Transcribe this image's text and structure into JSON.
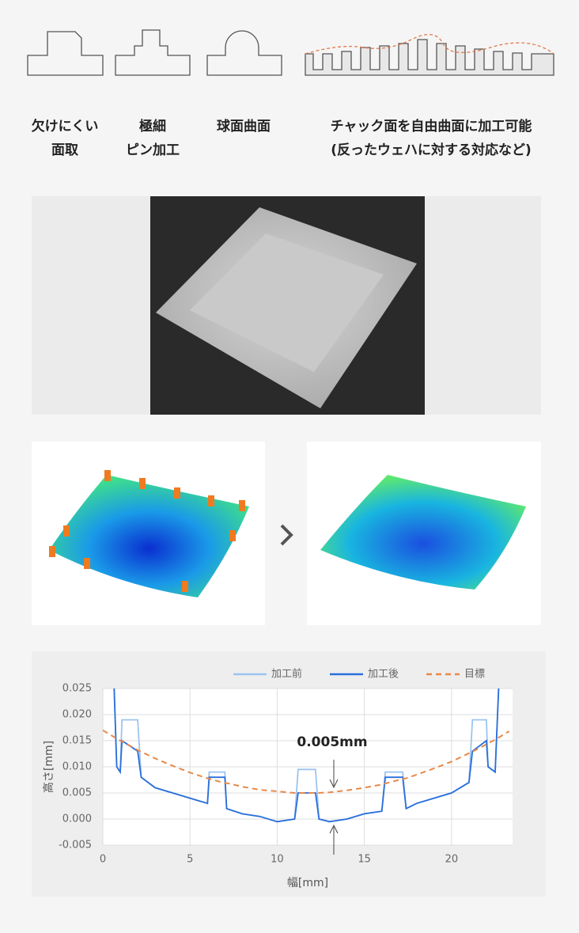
{
  "features": [
    {
      "lines": [
        "欠けにくい",
        "面取"
      ]
    },
    {
      "lines": [
        "極細",
        "ピン加工"
      ]
    },
    {
      "lines": [
        "球面曲面"
      ]
    },
    {
      "lines": [
        "チャック面を自由曲面に加工可能",
        "(反ったウェハに対する対応など)"
      ]
    }
  ],
  "chart_data": {
    "type": "line",
    "x": [
      0,
      0.65,
      0.8,
      1.0,
      1.1,
      2.0,
      2.2,
      3,
      4,
      5,
      6,
      6.1,
      7,
      7.1,
      8,
      9,
      10,
      11,
      11.2,
      12.2,
      12.4,
      13,
      14,
      15,
      16,
      16.2,
      17.2,
      17.4,
      18,
      19,
      20,
      21,
      21.2,
      22,
      22.1,
      22.5,
      22.7,
      23.3
    ],
    "series": [
      {
        "name": "加工前",
        "color": "#9cc3f0",
        "line_style": "solid",
        "values": [
          null,
          0.025,
          0.01,
          0.009,
          0.019,
          0.019,
          0.008,
          0.006,
          0.005,
          0.004,
          0.003,
          0.009,
          0.009,
          0.002,
          0.001,
          0.0005,
          -0.0005,
          0,
          0.0095,
          0.0095,
          0,
          -0.0005,
          0,
          0.001,
          0.0015,
          0.009,
          0.009,
          0.002,
          0.003,
          0.004,
          0.005,
          0.007,
          0.019,
          0.019,
          0.01,
          0.009,
          0.025,
          null
        ]
      },
      {
        "name": "加工後",
        "color": "#2a6fdb",
        "line_style": "solid",
        "values": [
          null,
          0.025,
          0.01,
          0.009,
          0.015,
          0.013,
          0.008,
          0.006,
          0.005,
          0.004,
          0.003,
          0.008,
          0.008,
          0.002,
          0.001,
          0.0005,
          -0.0005,
          0,
          0.005,
          0.005,
          0,
          -0.0005,
          0,
          0.001,
          0.0015,
          0.008,
          0.008,
          0.002,
          0.003,
          0.004,
          0.005,
          0.007,
          0.013,
          0.015,
          0.01,
          0.009,
          0.025,
          null
        ]
      },
      {
        "name": "目標",
        "color": "#e8894a",
        "line_style": "dashed",
        "values": [
          0.017,
          0.0157,
          0.0154,
          0.015,
          0.0149,
          0.0132,
          0.0129,
          0.0116,
          0.0102,
          0.0089,
          0.0078,
          0.0077,
          0.0069,
          0.0069,
          0.0062,
          0.0056,
          0.0053,
          0.005,
          0.005,
          0.005,
          0.005,
          0.0051,
          0.0055,
          0.006,
          0.0066,
          0.0068,
          0.0077,
          0.0078,
          0.0085,
          0.0097,
          0.011,
          0.0126,
          0.0129,
          0.0143,
          0.0145,
          0.0152,
          0.0156,
          0.0168
        ]
      }
    ],
    "xlim": [
      0,
      23.5
    ],
    "xticks": [
      0,
      5,
      10,
      15,
      20
    ],
    "ylim": [
      -0.005,
      0.025
    ],
    "yticks": [
      0.025,
      {
        "value": 0.02,
        "label": "0.020"
      },
      0.015,
      {
        "value": 0.01,
        "label": "0.010"
      },
      0.005,
      {
        "value": 0,
        "label": "0.000"
      },
      -0.005
    ],
    "xlabel": "幅[mm]",
    "ylabel": "高さ[mm]",
    "annotation": "0.005mm",
    "grid": true,
    "legend": "top"
  }
}
